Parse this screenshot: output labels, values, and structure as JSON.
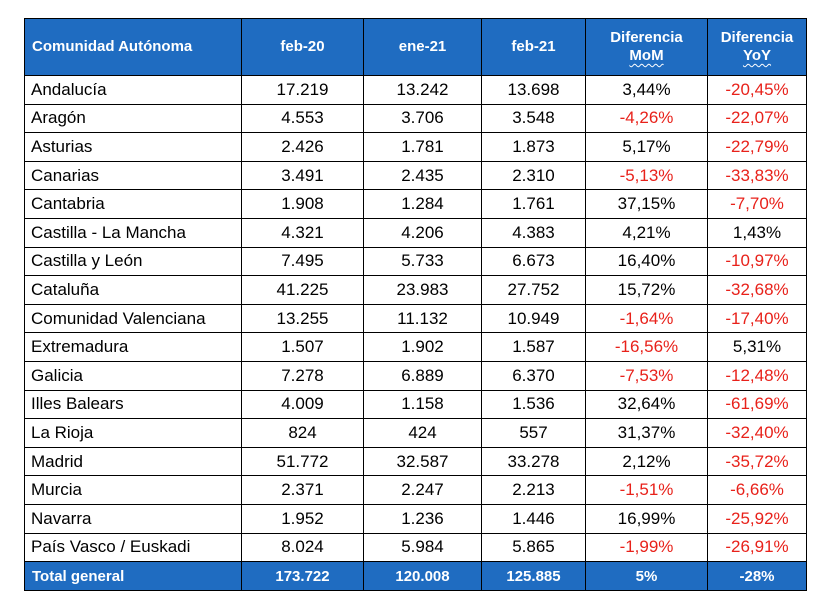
{
  "colors": {
    "header_bg": "#1f6cc1",
    "header_text": "#ffffff",
    "negative": "#e8211a",
    "border": "#000000"
  },
  "headers": {
    "region": "Comunidad Autónoma",
    "feb20": "feb-20",
    "ene21": "ene-21",
    "feb21": "feb-21",
    "mom_line1": "Diferencia",
    "mom_line2": "MoM",
    "yoy_line1": "Diferencia",
    "yoy_line2": "YoY"
  },
  "rows": [
    {
      "region": "Andalucía",
      "feb20": "17.219",
      "ene21": "13.242",
      "feb21": "13.698",
      "mom": "3,44%",
      "yoy": "-20,45%"
    },
    {
      "region": "Aragón",
      "feb20": "4.553",
      "ene21": "3.706",
      "feb21": "3.548",
      "mom": "-4,26%",
      "yoy": "-22,07%"
    },
    {
      "region": "Asturias",
      "feb20": "2.426",
      "ene21": "1.781",
      "feb21": "1.873",
      "mom": "5,17%",
      "yoy": "-22,79%"
    },
    {
      "region": "Canarias",
      "feb20": "3.491",
      "ene21": "2.435",
      "feb21": "2.310",
      "mom": "-5,13%",
      "yoy": "-33,83%"
    },
    {
      "region": "Cantabria",
      "feb20": "1.908",
      "ene21": "1.284",
      "feb21": "1.761",
      "mom": "37,15%",
      "yoy": "-7,70%"
    },
    {
      "region": "Castilla - La Mancha",
      "feb20": "4.321",
      "ene21": "4.206",
      "feb21": "4.383",
      "mom": "4,21%",
      "yoy": "1,43%"
    },
    {
      "region": "Castilla y León",
      "feb20": "7.495",
      "ene21": "5.733",
      "feb21": "6.673",
      "mom": "16,40%",
      "yoy": "-10,97%"
    },
    {
      "region": "Cataluña",
      "feb20": "41.225",
      "ene21": "23.983",
      "feb21": "27.752",
      "mom": "15,72%",
      "yoy": "-32,68%"
    },
    {
      "region": "Comunidad Valenciana",
      "feb20": "13.255",
      "ene21": "11.132",
      "feb21": "10.949",
      "mom": "-1,64%",
      "yoy": "-17,40%"
    },
    {
      "region": "Extremadura",
      "feb20": "1.507",
      "ene21": "1.902",
      "feb21": "1.587",
      "mom": "-16,56%",
      "yoy": "5,31%"
    },
    {
      "region": "Galicia",
      "feb20": "7.278",
      "ene21": "6.889",
      "feb21": "6.370",
      "mom": "-7,53%",
      "yoy": "-12,48%"
    },
    {
      "region": "Illes Balears",
      "feb20": "4.009",
      "ene21": "1.158",
      "feb21": "1.536",
      "mom": "32,64%",
      "yoy": "-61,69%"
    },
    {
      "region": "La Rioja",
      "feb20": "824",
      "ene21": "424",
      "feb21": "557",
      "mom": "31,37%",
      "yoy": "-32,40%"
    },
    {
      "region": "Madrid",
      "feb20": "51.772",
      "ene21": "32.587",
      "feb21": "33.278",
      "mom": "2,12%",
      "yoy": "-35,72%"
    },
    {
      "region": "Murcia",
      "feb20": "2.371",
      "ene21": "2.247",
      "feb21": "2.213",
      "mom": "-1,51%",
      "yoy": "-6,66%"
    },
    {
      "region": "Navarra",
      "feb20": "1.952",
      "ene21": "1.236",
      "feb21": "1.446",
      "mom": "16,99%",
      "yoy": "-25,92%"
    },
    {
      "region": "País Vasco / Euskadi",
      "feb20": "8.024",
      "ene21": "5.984",
      "feb21": "5.865",
      "mom": "-1,99%",
      "yoy": "-26,91%"
    }
  ],
  "total": {
    "region": "Total general",
    "feb20": "173.722",
    "ene21": "120.008",
    "feb21": "125.885",
    "mom": "5%",
    "yoy": "-28%"
  }
}
